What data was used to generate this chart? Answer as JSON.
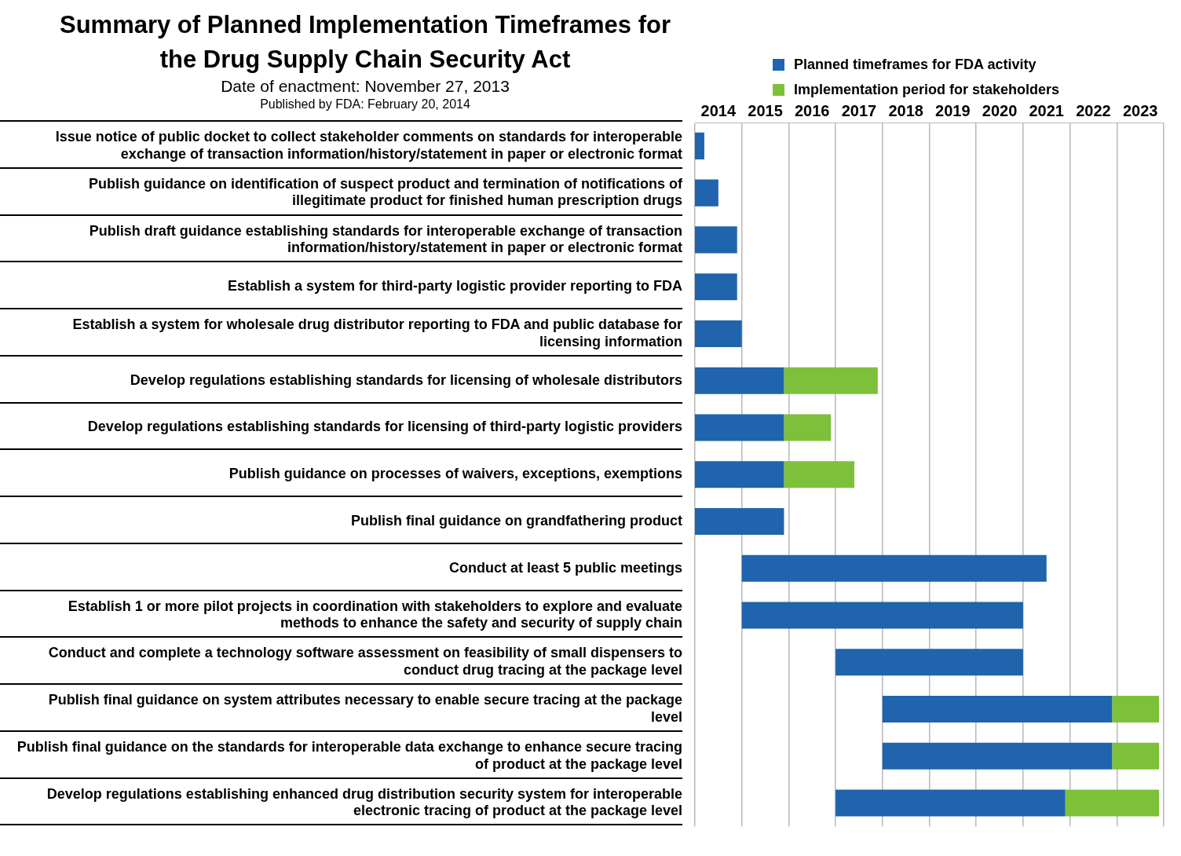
{
  "chart_data": {
    "type": "bar",
    "orientation": "horizontal",
    "title": "Summary of Planned Implementation Timeframes for the Drug Supply Chain Security Act",
    "subtitle": "Date of enactment:  November 27, 2013",
    "annotations": [
      "Published by FDA:  February 20, 2014"
    ],
    "categories": [
      "Issue notice of public docket to collect stakeholder comments on standards for interoperable exchange of transaction information/history/statement in paper or electronic format",
      "Publish guidance on identification of suspect product and termination of notifications of illegitimate product for finished human prescription drugs",
      "Publish draft guidance establishing standards for interoperable exchange of transaction information/history/statement in paper or electronic format",
      "Establish a system for third-party logistic provider reporting to FDA",
      "Establish a system for wholesale drug distributor reporting to FDA and public database for licensing information",
      "Develop regulations establishing standards for licensing of wholesale distributors",
      "Develop regulations establishing standards for licensing of third-party logistic providers",
      "Publish guidance on processes of waivers, exceptions, exemptions",
      "Publish final guidance on grandfathering product",
      "Conduct at least 5 public meetings",
      "Establish 1 or more pilot projects in coordination with stakeholders to explore and evaluate methods to enhance the safety and security of supply chain",
      "Conduct and complete a technology software assessment on feasibility of small dispensers to conduct drug tracing at the package level",
      "Publish final guidance on system attributes necessary to enable secure tracing at the package level",
      "Publish final guidance on the standards for interoperable data exchange to enhance secure tracing of product at the package level",
      "Develop regulations establishing enhanced drug distribution security system for interoperable electronic tracing of product at the package level"
    ],
    "series": [
      {
        "name": "Planned timeframes for FDA activity",
        "color": "#1f64ad",
        "base": [
          2014,
          2014,
          2014,
          2014,
          2014,
          2014,
          2014,
          2014,
          2014,
          2015,
          2015,
          2017,
          2018,
          2018,
          2017
        ],
        "values": [
          0.2,
          0.5,
          0.9,
          0.9,
          1.0,
          1.9,
          1.9,
          1.9,
          1.9,
          6.5,
          6.0,
          4.0,
          4.9,
          4.9,
          4.9
        ]
      },
      {
        "name": "Implementation period for stakeholders",
        "color": "#7dc13a",
        "base": [
          null,
          null,
          null,
          null,
          null,
          2015.9,
          2015.9,
          2015.9,
          null,
          null,
          null,
          null,
          2022.9,
          2022.9,
          2021.9
        ],
        "values": [
          null,
          null,
          null,
          null,
          null,
          2.0,
          1.0,
          1.5,
          null,
          null,
          null,
          null,
          1.0,
          1.0,
          2.0
        ]
      }
    ],
    "xlim": [
      2014,
      2024
    ],
    "xticks": [
      {
        "value": 2014,
        "label": null
      },
      {
        "value": 2014.5,
        "label": "2014"
      },
      {
        "value": 2015,
        "label": null
      },
      {
        "value": 2015.5,
        "label": "2015"
      },
      {
        "value": 2016,
        "label": null
      },
      {
        "value": 2016.5,
        "label": "2016"
      },
      {
        "value": 2017,
        "label": null
      },
      {
        "value": 2017.5,
        "label": "2017"
      },
      {
        "value": 2018,
        "label": null
      },
      {
        "value": 2018.5,
        "label": "2018"
      },
      {
        "value": 2019,
        "label": null
      },
      {
        "value": 2019.5,
        "label": "2019"
      },
      {
        "value": 2020,
        "label": null
      },
      {
        "value": 2020.5,
        "label": "2020"
      },
      {
        "value": 2021,
        "label": null
      },
      {
        "value": 2021.5,
        "label": "2021"
      },
      {
        "value": 2022,
        "label": null
      },
      {
        "value": 2022.5,
        "label": "2022"
      },
      {
        "value": 2023,
        "label": null
      },
      {
        "value": 2023.5,
        "label": "2023"
      },
      {
        "value": 2024,
        "label": null
      }
    ],
    "grid": "x",
    "legend": "top right"
  }
}
